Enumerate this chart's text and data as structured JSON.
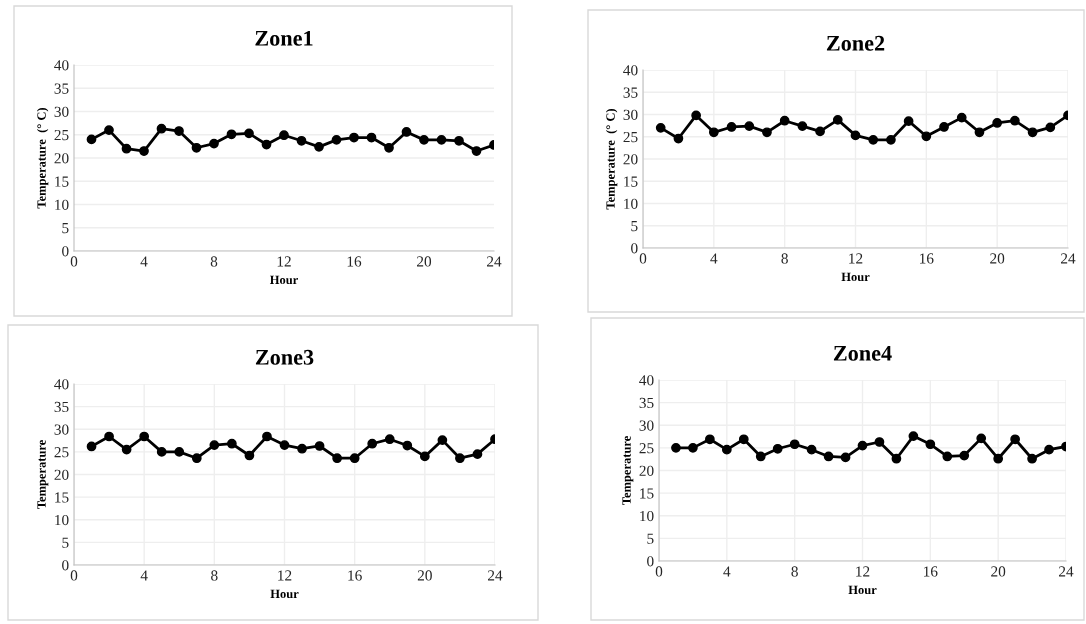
{
  "chart_data": [
    {
      "type": "line",
      "title": "Zone1",
      "xlabel": "Hour",
      "ylabel": "Temperature  (° C)",
      "x": [
        1,
        2,
        3,
        4,
        5,
        6,
        7,
        8,
        9,
        10,
        11,
        12,
        13,
        14,
        15,
        16,
        17,
        18,
        19,
        20,
        21,
        22,
        23,
        24
      ],
      "series": [
        {
          "color": "#000000",
          "values": [
            24,
            26,
            22,
            21.5,
            26.3,
            25.8,
            22.2,
            23.1,
            25.1,
            25.3,
            22.9,
            24.9,
            23.7,
            22.4,
            23.9,
            24.4,
            24.4,
            22.2,
            25.6,
            23.9,
            23.9,
            23.7,
            21.5,
            22.8
          ]
        }
      ],
      "xlim": [
        0,
        24
      ],
      "xticks": [
        0,
        4,
        8,
        12,
        16,
        20,
        24
      ],
      "ylim": [
        0,
        40
      ],
      "yticks": [
        0,
        5,
        10,
        15,
        20,
        25,
        30,
        35,
        40
      ],
      "grid": "y",
      "marker": "circle",
      "line_style": "solid",
      "legend": false
    },
    {
      "type": "line",
      "title": "Zone2",
      "xlabel": "Hour",
      "ylabel": "Temperature  (° C)",
      "x": [
        1,
        2,
        3,
        4,
        5,
        6,
        7,
        8,
        9,
        10,
        11,
        12,
        13,
        14,
        15,
        16,
        17,
        18,
        19,
        20,
        21,
        22,
        23,
        24
      ],
      "series": [
        {
          "color": "#000000",
          "values": [
            27,
            24.6,
            29.8,
            26,
            27.2,
            27.4,
            26,
            28.6,
            27.4,
            26.2,
            28.8,
            25.3,
            24.3,
            24.3,
            28.5,
            25.1,
            27.2,
            29.3,
            26,
            28.1,
            28.6,
            26,
            27.1,
            29.8
          ]
        }
      ],
      "xlim": [
        0,
        24
      ],
      "xticks": [
        0,
        4,
        8,
        12,
        16,
        20,
        24
      ],
      "ylim": [
        0,
        40
      ],
      "yticks": [
        0,
        5,
        10,
        15,
        20,
        25,
        30,
        35,
        40
      ],
      "grid": true,
      "marker": "circle",
      "line_style": "solid",
      "legend": false
    },
    {
      "type": "line",
      "title": "Zone3",
      "xlabel": "Hour",
      "ylabel": "Temperature",
      "x": [
        1,
        2,
        3,
        4,
        5,
        6,
        7,
        8,
        9,
        10,
        11,
        12,
        13,
        14,
        15,
        16,
        17,
        18,
        19,
        20,
        21,
        22,
        23,
        24
      ],
      "series": [
        {
          "color": "#000000",
          "values": [
            26.2,
            28.4,
            25.5,
            28.4,
            25,
            25,
            23.6,
            26.5,
            26.8,
            24.2,
            28.4,
            26.5,
            25.7,
            26.3,
            23.6,
            23.6,
            26.8,
            27.8,
            26.4,
            24,
            27.6,
            23.6,
            24.5,
            27.8
          ]
        }
      ],
      "xlim": [
        0,
        24
      ],
      "xticks": [
        0,
        4,
        8,
        12,
        16,
        20,
        24
      ],
      "ylim": [
        0,
        40
      ],
      "yticks": [
        0,
        5,
        10,
        15,
        20,
        25,
        30,
        35,
        40
      ],
      "grid": true,
      "marker": "circle",
      "line_style": "solid",
      "legend": false
    },
    {
      "type": "line",
      "title": "Zone4",
      "xlabel": "Hour",
      "ylabel": "Temperature",
      "x": [
        1,
        2,
        3,
        4,
        5,
        6,
        7,
        8,
        9,
        10,
        11,
        12,
        13,
        14,
        15,
        16,
        17,
        18,
        19,
        20,
        21,
        22,
        23,
        24
      ],
      "series": [
        {
          "color": "#000000",
          "values": [
            25,
            25,
            26.9,
            24.6,
            26.9,
            23.1,
            24.8,
            25.8,
            24.6,
            23.1,
            22.9,
            25.5,
            26.3,
            22.6,
            27.6,
            25.8,
            23.1,
            23.3,
            27.1,
            22.6,
            26.9,
            22.6,
            24.6,
            25.3
          ]
        }
      ],
      "xlim": [
        0,
        24
      ],
      "xticks": [
        0,
        4,
        8,
        12,
        16,
        20,
        24
      ],
      "ylim": [
        0,
        40
      ],
      "yticks": [
        0,
        5,
        10,
        15,
        20,
        25,
        30,
        35,
        40
      ],
      "grid": true,
      "marker": "circle",
      "line_style": "solid",
      "legend": false
    }
  ]
}
